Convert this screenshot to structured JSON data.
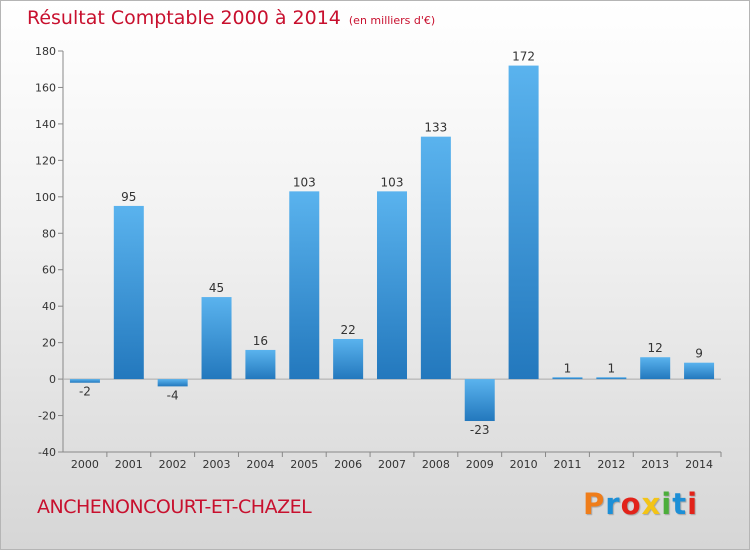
{
  "page": {
    "title": "Résultat Comptable 2000 à 2014",
    "subtitle": "(en milliers d'€)",
    "commune": "ANCHENONCOURT-ET-CHAZEL",
    "logo": "Proxiti",
    "logo_colors": [
      "#ef7d1a",
      "#1d8fd6",
      "#e2231a",
      "#f3c416",
      "#4cae3b",
      "#1d8fd6",
      "#e2231a"
    ]
  },
  "colors": {
    "title": "#c8102e",
    "bar_top": "#5ab3ee",
    "bar_bottom": "#2378bd"
  },
  "chart_data": {
    "type": "bar",
    "title": "Résultat Comptable 2000 à 2014",
    "subtitle": "(en milliers d'€)",
    "xlabel": "",
    "ylabel": "",
    "categories": [
      "2000",
      "2001",
      "2002",
      "2003",
      "2004",
      "2005",
      "2006",
      "2007",
      "2008",
      "2009",
      "2010",
      "2011",
      "2012",
      "2013",
      "2014"
    ],
    "values": [
      -2,
      95,
      -4,
      45,
      16,
      103,
      22,
      103,
      133,
      -23,
      172,
      1,
      1,
      12,
      9
    ],
    "ylim": [
      -40,
      180
    ],
    "yticks": [
      -40,
      -20,
      0,
      20,
      40,
      60,
      80,
      100,
      120,
      140,
      160,
      180
    ],
    "grid": false,
    "legend": "none"
  }
}
